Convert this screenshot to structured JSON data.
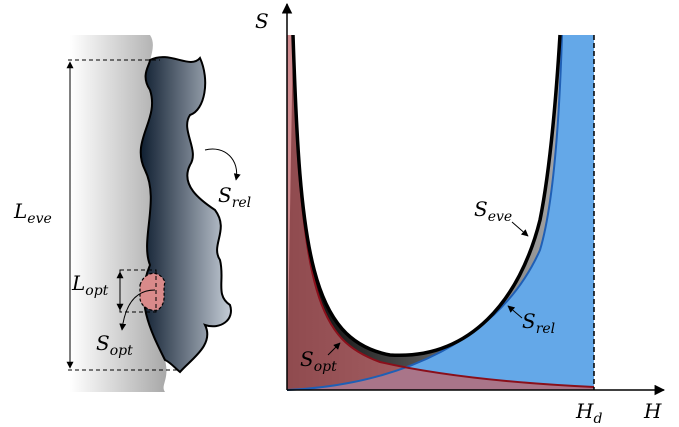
{
  "left_panel": {
    "l_eve": {
      "base": "L",
      "sub": "eve"
    },
    "l_opt": {
      "base": "L",
      "sub": "opt"
    },
    "s_rel": {
      "base": "S",
      "sub": "rel"
    },
    "s_opt": {
      "base": "S",
      "sub": "opt"
    }
  },
  "right_panel": {
    "y_axis": {
      "base": "S"
    },
    "x_axis": {
      "base": "H"
    },
    "h_d": {
      "base": "H",
      "sub": "d"
    },
    "s_eve": {
      "base": "S",
      "sub": "eve"
    },
    "s_rel": {
      "base": "S",
      "sub": "rel"
    },
    "s_opt": {
      "base": "S",
      "sub": "opt"
    }
  }
}
